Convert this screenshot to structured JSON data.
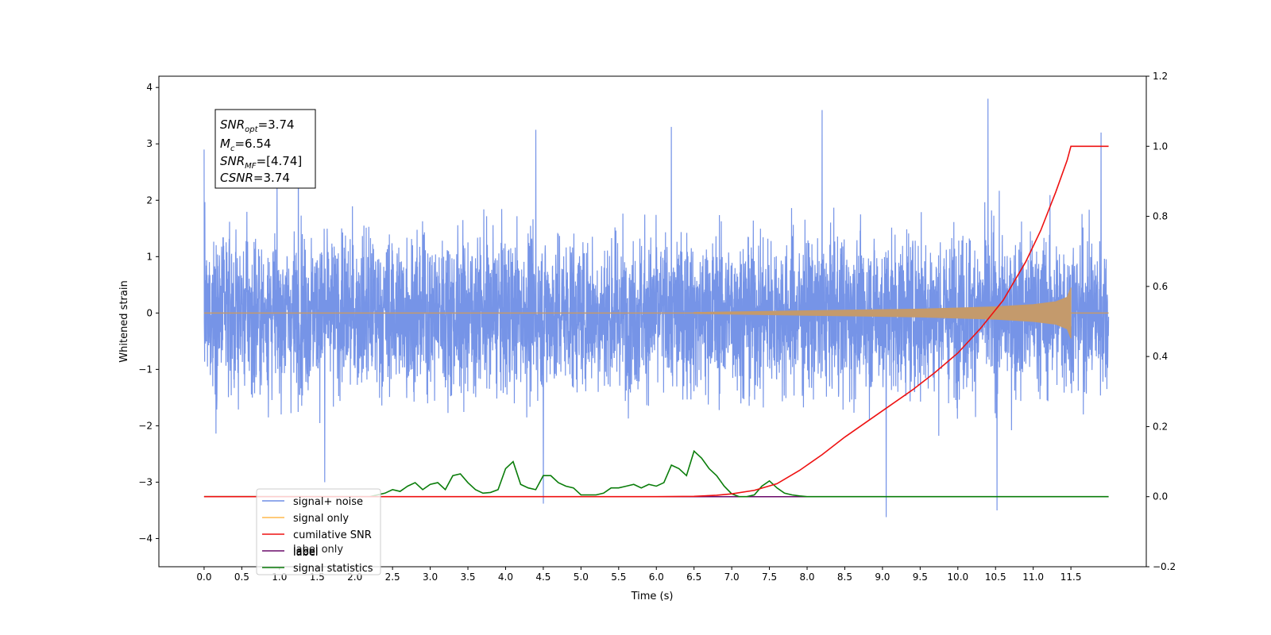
{
  "chart_data": {
    "type": "line",
    "xlabel": "Time (s)",
    "ylabel": "Whitened strain",
    "xlim": [
      -0.6,
      12.5
    ],
    "ylim_left": [
      -4.5,
      4.2
    ],
    "ylim_right": [
      -0.2,
      1.2
    ],
    "x_ticks": [
      "0.0",
      "0.5",
      "1.0",
      "1.5",
      "2.0",
      "2.5",
      "3.0",
      "3.5",
      "4.0",
      "4.5",
      "5.0",
      "5.5",
      "6.0",
      "6.5",
      "7.0",
      "7.5",
      "8.0",
      "8.5",
      "9.0",
      "9.5",
      "10.0",
      "10.5",
      "11.0",
      "11.5"
    ],
    "y_ticks_left": [
      "4",
      "3",
      "2",
      "1",
      "0",
      "−1",
      "−2",
      "−3",
      "−4"
    ],
    "y_ticks_right": [
      "1.2",
      "1.0",
      "0.8",
      "0.6",
      "0.4",
      "0.2",
      "0.0",
      "−0.2"
    ],
    "colors": {
      "signal_noise": "#6f8ee6",
      "signal_only": "#ffb84d",
      "signal_fill": "#c49a6c",
      "cumulative_snr": "#ee1111",
      "label": "#6a0a6a",
      "signal_statistics": "#0a7d0a"
    },
    "legend": {
      "placement": "lower-left",
      "entries": [
        "signal+ noise",
        "signal only",
        "cumilative SNR",
        "label",
        "signal statistics"
      ],
      "overlapped_text": "label only"
    },
    "annotation": {
      "line1_label": "SNR",
      "line1_sub": "opt",
      "line1_value": "=3.74",
      "line2_label": "M",
      "line2_sub": "c",
      "line2_value": "=6.54",
      "line3_label": "SNR",
      "line3_sub": "MF",
      "line3_value": "=[4.74]",
      "line4_label": "CSNR",
      "line4_value": "=3.74"
    },
    "series": [
      {
        "name": "signal+ noise",
        "axis": "left",
        "x_range": [
          0.0,
          12.0
        ],
        "envelope_typical": [
          -1.8,
          1.8
        ],
        "peaks": [
          {
            "x": 0.0,
            "y": 2.9
          },
          {
            "x": 1.25,
            "y": 3.4
          },
          {
            "x": 1.6,
            "y": -3.0
          },
          {
            "x": 4.5,
            "y": -3.38
          },
          {
            "x": 4.4,
            "y": 3.25
          },
          {
            "x": 6.2,
            "y": 3.3
          },
          {
            "x": 8.2,
            "y": 3.6
          },
          {
            "x": 9.05,
            "y": -3.62
          },
          {
            "x": 10.4,
            "y": 3.8
          },
          {
            "x": 10.52,
            "y": -3.5
          },
          {
            "x": 11.9,
            "y": 3.2
          }
        ]
      },
      {
        "name": "signal only",
        "axis": "left",
        "x_range": [
          0.0,
          12.0
        ],
        "envelope": {
          "x": [
            6.5,
            7.5,
            8.0,
            8.5,
            9.0,
            9.5,
            10.0,
            10.5,
            11.0,
            11.3,
            11.45,
            11.5
          ],
          "amp": [
            0.01,
            0.03,
            0.04,
            0.05,
            0.06,
            0.07,
            0.09,
            0.11,
            0.15,
            0.2,
            0.28,
            0.45
          ]
        }
      },
      {
        "name": "cumilative SNR",
        "axis": "right",
        "x": [
          0.0,
          6.0,
          6.5,
          6.8,
          7.0,
          7.3,
          7.6,
          7.9,
          8.2,
          8.5,
          8.8,
          9.1,
          9.4,
          9.7,
          10.0,
          10.3,
          10.6,
          10.9,
          11.1,
          11.3,
          11.45,
          11.5,
          12.0
        ],
        "values": [
          0.0,
          0.0,
          0.001,
          0.004,
          0.008,
          0.018,
          0.037,
          0.075,
          0.12,
          0.17,
          0.215,
          0.26,
          0.305,
          0.355,
          0.41,
          0.48,
          0.56,
          0.67,
          0.76,
          0.87,
          0.96,
          1.0,
          1.0
        ]
      },
      {
        "name": "label",
        "axis": "right",
        "x": [
          0.0,
          12.0
        ],
        "values": [
          0.0,
          0.0
        ]
      },
      {
        "name": "signal statistics",
        "axis": "right",
        "x": [
          0.0,
          2.2,
          2.4,
          2.5,
          2.6,
          2.7,
          2.8,
          2.9,
          3.0,
          3.1,
          3.2,
          3.3,
          3.4,
          3.5,
          3.6,
          3.7,
          3.8,
          3.9,
          4.0,
          4.1,
          4.2,
          4.3,
          4.4,
          4.5,
          4.6,
          4.7,
          4.8,
          4.9,
          5.0,
          5.2,
          5.3,
          5.4,
          5.5,
          5.6,
          5.7,
          5.8,
          5.9,
          6.0,
          6.1,
          6.2,
          6.3,
          6.4,
          6.5,
          6.6,
          6.7,
          6.8,
          6.9,
          7.0,
          7.1,
          7.2,
          7.3,
          7.4,
          7.5,
          7.6,
          7.7,
          7.8,
          7.9,
          8.0,
          8.2,
          8.4,
          12.0
        ],
        "values": [
          0.0,
          0.0,
          0.01,
          0.02,
          0.015,
          0.03,
          0.04,
          0.02,
          0.035,
          0.04,
          0.02,
          0.06,
          0.065,
          0.04,
          0.02,
          0.01,
          0.012,
          0.02,
          0.08,
          0.1,
          0.035,
          0.025,
          0.02,
          0.06,
          0.06,
          0.04,
          0.03,
          0.025,
          0.005,
          0.005,
          0.01,
          0.025,
          0.025,
          0.03,
          0.035,
          0.025,
          0.035,
          0.03,
          0.04,
          0.09,
          0.08,
          0.06,
          0.13,
          0.11,
          0.08,
          0.06,
          0.03,
          0.008,
          0.0,
          0.0,
          0.005,
          0.03,
          0.045,
          0.025,
          0.01,
          0.005,
          0.002,
          0.0,
          0.0,
          0.0,
          0.0
        ]
      }
    ]
  }
}
